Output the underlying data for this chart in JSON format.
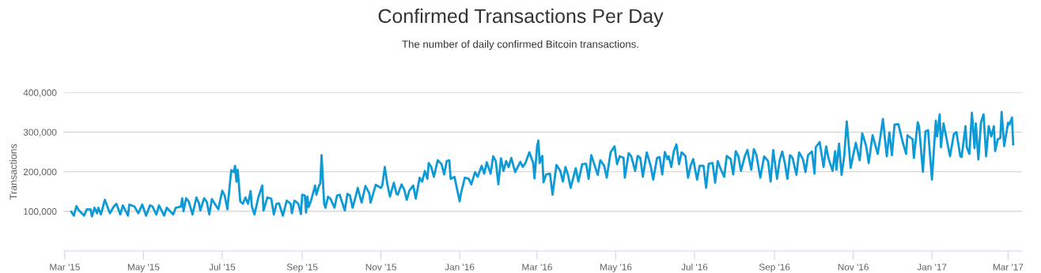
{
  "chart_data": {
    "type": "line",
    "title": "Confirmed Transactions Per Day",
    "subtitle": "The number of daily confirmed Bitcoin transactions.",
    "ylabel": "Transactions",
    "xlim": [
      "2015-02-28",
      "2017-03-12"
    ],
    "ylim": [
      0,
      400000
    ],
    "xticks": [
      {
        "value": "2015-03-01",
        "label": "Mar '15"
      },
      {
        "value": "2015-05-01",
        "label": "May '15"
      },
      {
        "value": "2015-07-01",
        "label": "Jul '15"
      },
      {
        "value": "2015-09-01",
        "label": "Sep '15"
      },
      {
        "value": "2015-11-01",
        "label": "Nov '15"
      },
      {
        "value": "2016-01-01",
        "label": "Jan '16"
      },
      {
        "value": "2016-03-01",
        "label": "Mar '16"
      },
      {
        "value": "2016-05-01",
        "label": "May '16"
      },
      {
        "value": "2016-07-01",
        "label": "Jul '16"
      },
      {
        "value": "2016-09-01",
        "label": "Sep '16"
      },
      {
        "value": "2016-11-01",
        "label": "Nov '16"
      },
      {
        "value": "2017-01-01",
        "label": "Jan '17"
      },
      {
        "value": "2017-03-01",
        "label": "Mar '17"
      }
    ],
    "yticks": [
      {
        "value": 100000,
        "label": "100,000"
      },
      {
        "value": 200000,
        "label": "200,000"
      },
      {
        "value": 300000,
        "label": "300,000"
      },
      {
        "value": 400000,
        "label": "400,000"
      }
    ],
    "grid": "y",
    "marker": "none",
    "line_style": "solid",
    "series": [
      {
        "color": "#0d9ad5",
        "x": [
          "2015-03-06",
          "2015-03-08",
          "2015-03-10",
          "2015-03-12",
          "2015-03-16",
          "2015-03-18",
          "2015-03-21",
          "2015-03-22",
          "2015-03-24",
          "2015-03-26",
          "2015-03-27",
          "2015-03-29",
          "2015-04-01",
          "2015-04-05",
          "2015-04-08",
          "2015-04-10",
          "2015-04-13",
          "2015-04-15",
          "2015-04-19",
          "2015-04-20",
          "2015-04-24",
          "2015-04-27",
          "2015-04-30",
          "2015-05-03",
          "2015-05-06",
          "2015-05-08",
          "2015-05-11",
          "2015-05-13",
          "2015-05-17",
          "2015-05-19",
          "2015-05-21",
          "2015-05-24",
          "2015-05-26",
          "2015-05-30",
          "2015-05-31",
          "2015-06-01",
          "2015-06-03",
          "2015-06-05",
          "2015-06-08",
          "2015-06-11",
          "2015-06-13",
          "2015-06-14",
          "2015-06-17",
          "2015-06-19",
          "2015-06-21",
          "2015-06-23",
          "2015-06-26",
          "2015-06-28",
          "2015-07-01",
          "2015-07-03",
          "2015-07-05",
          "2015-07-08",
          "2015-07-10",
          "2015-07-11",
          "2015-07-12",
          "2015-07-13",
          "2015-07-15",
          "2015-07-17",
          "2015-07-19",
          "2015-07-21",
          "2015-07-23",
          "2015-07-24",
          "2015-07-26",
          "2015-07-29",
          "2015-08-01",
          "2015-08-02",
          "2015-08-05",
          "2015-08-08",
          "2015-08-10",
          "2015-08-12",
          "2015-08-14",
          "2015-08-17",
          "2015-08-20",
          "2015-08-23",
          "2015-08-24",
          "2015-08-26",
          "2015-08-29",
          "2015-08-31",
          "2015-09-01",
          "2015-09-03",
          "2015-09-04",
          "2015-09-05",
          "2015-09-06",
          "2015-09-08",
          "2015-09-11",
          "2015-09-12",
          "2015-09-14",
          "2015-09-15",
          "2015-09-16",
          "2015-09-18",
          "2015-09-19",
          "2015-09-21",
          "2015-09-23",
          "2015-09-26",
          "2015-09-28",
          "2015-09-30",
          "2015-10-04",
          "2015-10-06",
          "2015-10-08",
          "2015-10-10",
          "2015-10-12",
          "2015-10-14",
          "2015-10-17",
          "2015-10-20",
          "2015-10-23",
          "2015-10-24",
          "2015-10-28",
          "2015-11-01",
          "2015-11-02",
          "2015-11-04",
          "2015-11-06",
          "2015-11-08",
          "2015-11-11",
          "2015-11-13",
          "2015-11-14",
          "2015-11-17",
          "2015-11-19",
          "2015-11-21",
          "2015-11-23",
          "2015-11-26",
          "2015-11-28",
          "2015-12-01",
          "2015-12-03",
          "2015-12-05",
          "2015-12-07",
          "2015-12-08",
          "2015-12-10",
          "2015-12-12",
          "2015-12-15",
          "2015-12-18",
          "2015-12-20",
          "2015-12-22",
          "2015-12-24",
          "2015-12-25",
          "2015-12-28",
          "2016-01-01",
          "2016-01-02",
          "2016-01-05",
          "2016-01-08",
          "2016-01-10",
          "2016-01-13",
          "2016-01-15",
          "2016-01-18",
          "2016-01-20",
          "2016-01-22",
          "2016-01-25",
          "2016-01-27",
          "2016-01-29",
          "2016-01-31",
          "2016-02-02",
          "2016-02-04",
          "2016-02-06",
          "2016-02-08",
          "2016-02-10",
          "2016-02-13",
          "2016-02-17",
          "2016-02-19",
          "2016-02-21",
          "2016-02-24",
          "2016-02-27",
          "2016-02-28",
          "2016-03-01",
          "2016-03-02",
          "2016-03-03",
          "2016-03-05",
          "2016-03-06",
          "2016-03-08",
          "2016-03-11",
          "2016-03-13",
          "2016-03-16",
          "2016-03-19",
          "2016-03-21",
          "2016-03-23",
          "2016-03-25",
          "2016-03-27",
          "2016-03-31",
          "2016-04-02",
          "2016-04-05",
          "2016-04-08",
          "2016-04-10",
          "2016-04-12",
          "2016-04-14",
          "2016-04-17",
          "2016-04-19",
          "2016-04-22",
          "2016-04-24",
          "2016-04-27",
          "2016-04-30",
          "2016-05-02",
          "2016-05-04",
          "2016-05-07",
          "2016-05-08",
          "2016-05-11",
          "2016-05-13",
          "2016-05-16",
          "2016-05-18",
          "2016-05-20",
          "2016-05-22",
          "2016-05-25",
          "2016-05-28",
          "2016-05-30",
          "2016-06-02",
          "2016-06-04",
          "2016-06-06",
          "2016-06-08",
          "2016-06-10",
          "2016-06-11",
          "2016-06-13",
          "2016-06-15",
          "2016-06-17",
          "2016-06-19",
          "2016-06-21",
          "2016-06-24",
          "2016-06-26",
          "2016-06-28",
          "2016-06-30",
          "2016-07-03",
          "2016-07-05",
          "2016-07-08",
          "2016-07-10",
          "2016-07-12",
          "2016-07-15",
          "2016-07-17",
          "2016-07-19",
          "2016-07-21",
          "2016-07-24",
          "2016-07-26",
          "2016-07-29",
          "2016-07-31",
          "2016-08-02",
          "2016-08-04",
          "2016-08-06",
          "2016-08-09",
          "2016-08-11",
          "2016-08-14",
          "2016-08-16",
          "2016-08-18",
          "2016-08-21",
          "2016-08-24",
          "2016-08-27",
          "2016-08-29",
          "2016-08-31",
          "2016-09-01",
          "2016-09-03",
          "2016-09-05",
          "2016-09-07",
          "2016-09-09",
          "2016-09-11",
          "2016-09-13",
          "2016-09-15",
          "2016-09-18",
          "2016-09-20",
          "2016-09-23",
          "2016-09-25",
          "2016-09-27",
          "2016-09-30",
          "2016-10-02",
          "2016-10-03",
          "2016-10-06",
          "2016-10-09",
          "2016-10-11",
          "2016-10-13",
          "2016-10-16",
          "2016-10-18",
          "2016-10-19",
          "2016-10-21",
          "2016-10-23",
          "2016-10-25",
          "2016-10-27",
          "2016-10-30",
          "2016-11-01",
          "2016-11-03",
          "2016-11-06",
          "2016-11-08",
          "2016-11-11",
          "2016-11-13",
          "2016-11-16",
          "2016-11-20",
          "2016-11-22",
          "2016-11-24",
          "2016-11-27",
          "2016-11-29",
          "2016-12-01",
          "2016-12-03",
          "2016-12-06",
          "2016-12-09",
          "2016-12-12",
          "2016-12-13",
          "2016-12-17",
          "2016-12-18",
          "2016-12-21",
          "2016-12-22",
          "2016-12-25",
          "2016-12-27",
          "2016-12-29",
          "2017-01-01",
          "2017-01-04",
          "2017-01-05",
          "2017-01-07",
          "2017-01-08",
          "2017-01-10",
          "2017-01-15",
          "2017-01-18",
          "2017-01-20",
          "2017-01-23",
          "2017-01-24",
          "2017-01-27",
          "2017-01-28",
          "2017-01-30",
          "2017-02-01",
          "2017-02-03",
          "2017-02-04",
          "2017-02-06",
          "2017-02-08",
          "2017-02-10",
          "2017-02-12",
          "2017-02-14",
          "2017-02-16",
          "2017-02-18",
          "2017-02-19",
          "2017-02-21",
          "2017-02-23",
          "2017-02-24",
          "2017-02-26",
          "2017-03-01",
          "2017-03-02",
          "2017-03-04",
          "2017-03-05"
        ],
        "values": [
          99000,
          89000,
          113000,
          102000,
          89000,
          105000,
          105000,
          87000,
          109000,
          95000,
          109000,
          92000,
          129000,
          95000,
          112000,
          119000,
          92000,
          115000,
          89000,
          117000,
          112000,
          95000,
          117000,
          89000,
          115000,
          112000,
          92000,
          115000,
          89000,
          109000,
          102000,
          92000,
          109000,
          112000,
          133000,
          100000,
          133000,
          125000,
          92000,
          135000,
          120000,
          102000,
          133000,
          124000,
          92000,
          131000,
          115000,
          105000,
          152000,
          139000,
          105000,
          204000,
          199000,
          215000,
          175000,
          205000,
          125000,
          119000,
          135000,
          119000,
          151000,
          112000,
          92000,
          135000,
          165000,
          102000,
          135000,
          132000,
          92000,
          119000,
          120000,
          89000,
          127000,
          119000,
          95000,
          127000,
          119000,
          93000,
          142000,
          140000,
          97000,
          137000,
          111000,
          129000,
          165000,
          142000,
          165000,
          170000,
          242000,
          119000,
          109000,
          137000,
          131000,
          109000,
          140000,
          142000,
          102000,
          144000,
          140000,
          109000,
          132000,
          159000,
          122000,
          164000,
          145000,
          122000,
          167000,
          159000,
          165000,
          212000,
          168000,
          137000,
          172000,
          145000,
          142000,
          168000,
          155000,
          129000,
          152000,
          165000,
          132000,
          185000,
          175000,
          202000,
          182000,
          222000,
          212000,
          187000,
          229000,
          219000,
          193000,
          227000,
          229000,
          182000,
          187000,
          125000,
          145000,
          185000,
          182000,
          168000,
          199000,
          187000,
          215000,
          195000,
          224000,
          195000,
          239000,
          227000,
          168000,
          234000,
          202000,
          227000,
          212000,
          235000,
          199000,
          225000,
          212000,
          222000,
          249000,
          222000,
          183000,
          264000,
          279000,
          222000,
          240000,
          173000,
          193000,
          195000,
          142000,
          217000,
          202000,
          175000,
          212000,
          192000,
          159000,
          209000,
          175000,
          219000,
          220000,
          182000,
          242000,
          222000,
          192000,
          229000,
          215000,
          185000,
          249000,
          264000,
          219000,
          239000,
          235000,
          185000,
          247000,
          239000,
          202000,
          240000,
          235000,
          187000,
          249000,
          215000,
          180000,
          235000,
          237000,
          193000,
          250000,
          232000,
          239000,
          212000,
          252000,
          269000,
          219000,
          249000,
          239000,
          185000,
          215000,
          232000,
          180000,
          215000,
          215000,
          159000,
          220000,
          222000,
          172000,
          227000,
          209000,
          187000,
          240000,
          232000,
          193000,
          252000,
          239000,
          202000,
          239000,
          255000,
          205000,
          257000,
          242000,
          185000,
          239000,
          227000,
          175000,
          255000,
          230000,
          182000,
          229000,
          251000,
          222000,
          182000,
          242000,
          235000,
          192000,
          249000,
          232000,
          199000,
          242000,
          251000,
          195000,
          262000,
          275000,
          212000,
          264000,
          232000,
          202000,
          252000,
          205000,
          271000,
          192000,
          239000,
          327000,
          210000,
          242000,
          273000,
          229000,
          297000,
          265000,
          222000,
          292000,
          245000,
          287000,
          333000,
          239000,
          299000,
          242000,
          319000,
          320000,
          279000,
          245000,
          292000,
          282000,
          235000,
          325000,
          315000,
          200000,
          302000,
          305000,
          180000,
          329000,
          289000,
          345000,
          262000,
          322000,
          239000,
          295000,
          300000,
          239000,
          237000,
          315000,
          262000,
          245000,
          349000,
          260000,
          322000,
          231000,
          325000,
          345000,
          239000,
          315000,
          289000,
          315000,
          252000,
          282000,
          285000,
          351000,
          265000,
          324000,
          319000,
          337000,
          269000
        ]
      }
    ]
  }
}
